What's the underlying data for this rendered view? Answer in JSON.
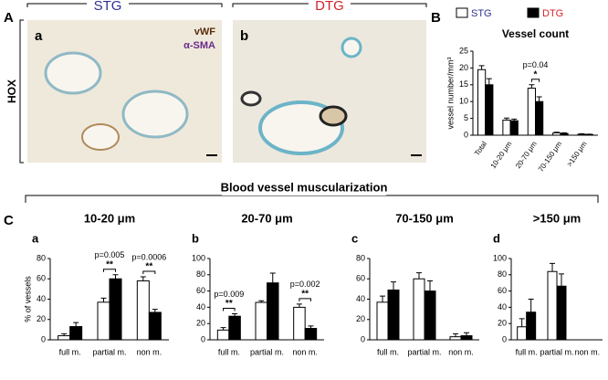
{
  "figure": {
    "panel_a": "A",
    "stg": "STG",
    "dtg": "DTG",
    "img_a": "a",
    "img_b": "b",
    "vwf": "vWF",
    "asma": "α-SMA",
    "hox": "HOX",
    "panel_b": "B",
    "section": "Blood vessel muscularization",
    "panel_c": "C"
  },
  "chart_data": [
    {
      "type": "bar",
      "title": "Vessel count",
      "ylabel": "vessel number/mm³",
      "legend": true,
      "categories": [
        "Total",
        "10-20 μm",
        "20-70 μm",
        "70-150 μm",
        ">150 μm"
      ],
      "series": [
        {
          "name": "STG",
          "color": "#ffffff",
          "label_color": "#2e3192",
          "values": [
            19.5,
            4.5,
            14,
            0.7,
            0.3
          ],
          "errors": [
            1.2,
            0.6,
            1,
            0.2,
            0.1
          ]
        },
        {
          "name": "DTG",
          "color": "#000000",
          "label_color": "#d2232a",
          "values": [
            15,
            4.3,
            10,
            0.5,
            0.2
          ],
          "errors": [
            1.8,
            0.5,
            1.4,
            0.2,
            0.1
          ]
        }
      ],
      "annotations": [
        null,
        null,
        {
          "p": "p=0.04",
          "sig": "*"
        },
        null,
        null
      ],
      "ylim": [
        0,
        25
      ],
      "yticks": [
        0,
        5,
        10,
        15,
        20,
        25
      ]
    },
    {
      "type": "bar",
      "panel": "a",
      "title": "10-20 μm",
      "ylabel": "% of vessels",
      "categories": [
        "full m.",
        "partial m.",
        "non m."
      ],
      "series": [
        {
          "color": "#ffffff",
          "values": [
            4,
            37,
            58
          ],
          "errors": [
            2,
            4,
            4
          ]
        },
        {
          "color": "#000000",
          "values": [
            13,
            60,
            27
          ],
          "errors": [
            4,
            4,
            3
          ]
        }
      ],
      "annotations": [
        null,
        {
          "p": "p=0.005",
          "sig": "**"
        },
        {
          "p": "p=0.0006",
          "sig": "**"
        }
      ],
      "ylim": [
        0,
        80
      ],
      "yticks": [
        0,
        20,
        40,
        60,
        80
      ]
    },
    {
      "type": "bar",
      "panel": "b",
      "title": "20-70 μm",
      "categories": [
        "full m.",
        "partial m.",
        "non m."
      ],
      "series": [
        {
          "color": "#ffffff",
          "values": [
            12,
            46,
            40
          ],
          "errors": [
            3,
            2,
            4
          ]
        },
        {
          "color": "#000000",
          "values": [
            29,
            70,
            14
          ],
          "errors": [
            3,
            12,
            3
          ]
        }
      ],
      "annotations": [
        {
          "p": "p=0.009",
          "sig": "**"
        },
        null,
        {
          "p": "p=0.002",
          "sig": "**"
        }
      ],
      "ylim": [
        0,
        100
      ],
      "yticks": [
        0,
        20,
        40,
        60,
        80,
        100
      ]
    },
    {
      "type": "bar",
      "panel": "c",
      "title": "70-150 μm",
      "categories": [
        "full m.",
        "partial m.",
        "non m."
      ],
      "series": [
        {
          "color": "#ffffff",
          "values": [
            37,
            60,
            3
          ],
          "errors": [
            6,
            6,
            3
          ]
        },
        {
          "color": "#000000",
          "values": [
            49,
            48,
            4
          ],
          "errors": [
            8,
            10,
            3
          ]
        }
      ],
      "ylim": [
        0,
        80
      ],
      "yticks": [
        0,
        20,
        40,
        60,
        80
      ]
    },
    {
      "type": "bar",
      "panel": "d",
      "title": ">150 μm",
      "categories": [
        "full m.",
        "partial m.",
        "non m."
      ],
      "series": [
        {
          "color": "#ffffff",
          "values": [
            16,
            84,
            0
          ],
          "errors": [
            10,
            10,
            0
          ]
        },
        {
          "color": "#000000",
          "values": [
            34,
            66,
            0
          ],
          "errors": [
            16,
            15,
            0
          ]
        }
      ],
      "ylim": [
        0,
        100
      ],
      "yticks": [
        0,
        20,
        40,
        60,
        80,
        100
      ]
    }
  ]
}
